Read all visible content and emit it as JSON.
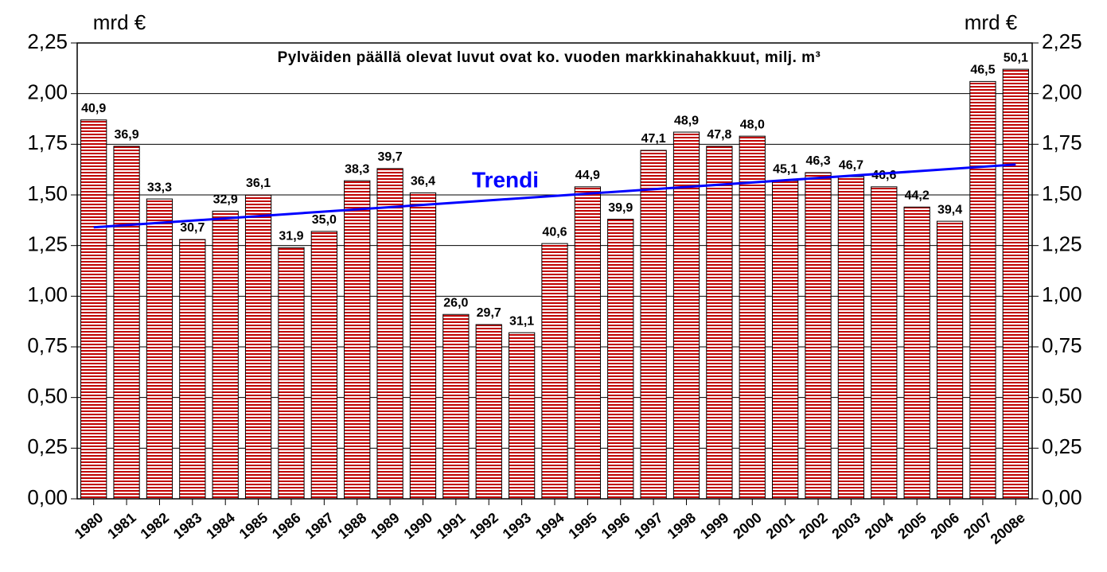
{
  "chart_data": {
    "type": "bar",
    "title": "Pylväiden päällä olevat luvut ovat ko. vuoden markkinahakkuut, milj. m³",
    "ylabel": "mrd €",
    "y2label": "mrd €",
    "categories": [
      "1980",
      "1981",
      "1982",
      "1983",
      "1984",
      "1985",
      "1986",
      "1987",
      "1988",
      "1989",
      "1990",
      "1991",
      "1992",
      "1993",
      "1994",
      "1995",
      "1996",
      "1997",
      "1998",
      "1999",
      "2000",
      "2001",
      "2002",
      "2003",
      "2004",
      "2005",
      "2006",
      "2007",
      "2008e"
    ],
    "values": [
      1.87,
      1.74,
      1.48,
      1.28,
      1.42,
      1.5,
      1.24,
      1.32,
      1.57,
      1.63,
      1.51,
      0.91,
      0.86,
      0.82,
      1.26,
      1.54,
      1.38,
      1.72,
      1.81,
      1.74,
      1.79,
      1.57,
      1.61,
      1.59,
      1.54,
      1.44,
      1.37,
      2.06,
      2.12
    ],
    "color": "#c00000",
    "harvest": {
      "values": [
        40.9,
        36.9,
        33.3,
        30.7,
        32.9,
        36.1,
        31.9,
        35.0,
        38.3,
        39.7,
        36.4,
        26.0,
        29.7,
        31.1,
        40.6,
        44.9,
        39.9,
        47.1,
        48.9,
        47.8,
        48.0,
        45.1,
        46.3,
        46.7,
        46.6,
        44.2,
        39.4,
        46.5,
        50.1
      ],
      "value_labels": [
        "40,9",
        "36,9",
        "33,3",
        "30,7",
        "32,9",
        "36,1",
        "31,9",
        "35,0",
        "38,3",
        "39,7",
        "36,4",
        "26,0",
        "29,7",
        "31,1",
        "40,6",
        "44,9",
        "39,9",
        "47,1",
        "48,9",
        "47,8",
        "48,0",
        "45,1",
        "46,3",
        "46,7",
        "46,6",
        "44,2",
        "39,4",
        "46,5",
        "50,1"
      ]
    },
    "trend": {
      "label": "Trendi",
      "values": [
        1.34,
        1.65
      ],
      "color": "#0000ff"
    },
    "ylim": [
      0,
      2.25
    ],
    "yticks": [
      {
        "value": 0,
        "label": "0,00"
      },
      {
        "value": 0.25,
        "label": "0,25"
      },
      {
        "value": 0.5,
        "label": "0,50"
      },
      {
        "value": 0.75,
        "label": "0,75"
      },
      {
        "value": 1,
        "label": "1,00"
      },
      {
        "value": 1.25,
        "label": "1,25"
      },
      {
        "value": 1.5,
        "label": "1,50"
      },
      {
        "value": 1.75,
        "label": "1,75"
      },
      {
        "value": 2,
        "label": "2,00"
      },
      {
        "value": 2.25,
        "label": "2,25"
      }
    ],
    "y2lim": [
      0,
      2.25
    ],
    "y2ticks": [
      {
        "value": 0,
        "label": "0,00"
      },
      {
        "value": 0.25,
        "label": "0,25"
      },
      {
        "value": 0.5,
        "label": "0,50"
      },
      {
        "value": 0.75,
        "label": "0,75"
      },
      {
        "value": 1,
        "label": "1,00"
      },
      {
        "value": 1.25,
        "label": "1,25"
      },
      {
        "value": 1.5,
        "label": "1,50"
      },
      {
        "value": 1.75,
        "label": "1,75"
      },
      {
        "value": 2,
        "label": "2,00"
      },
      {
        "value": 2.25,
        "label": "2,25"
      }
    ],
    "grid": true
  }
}
